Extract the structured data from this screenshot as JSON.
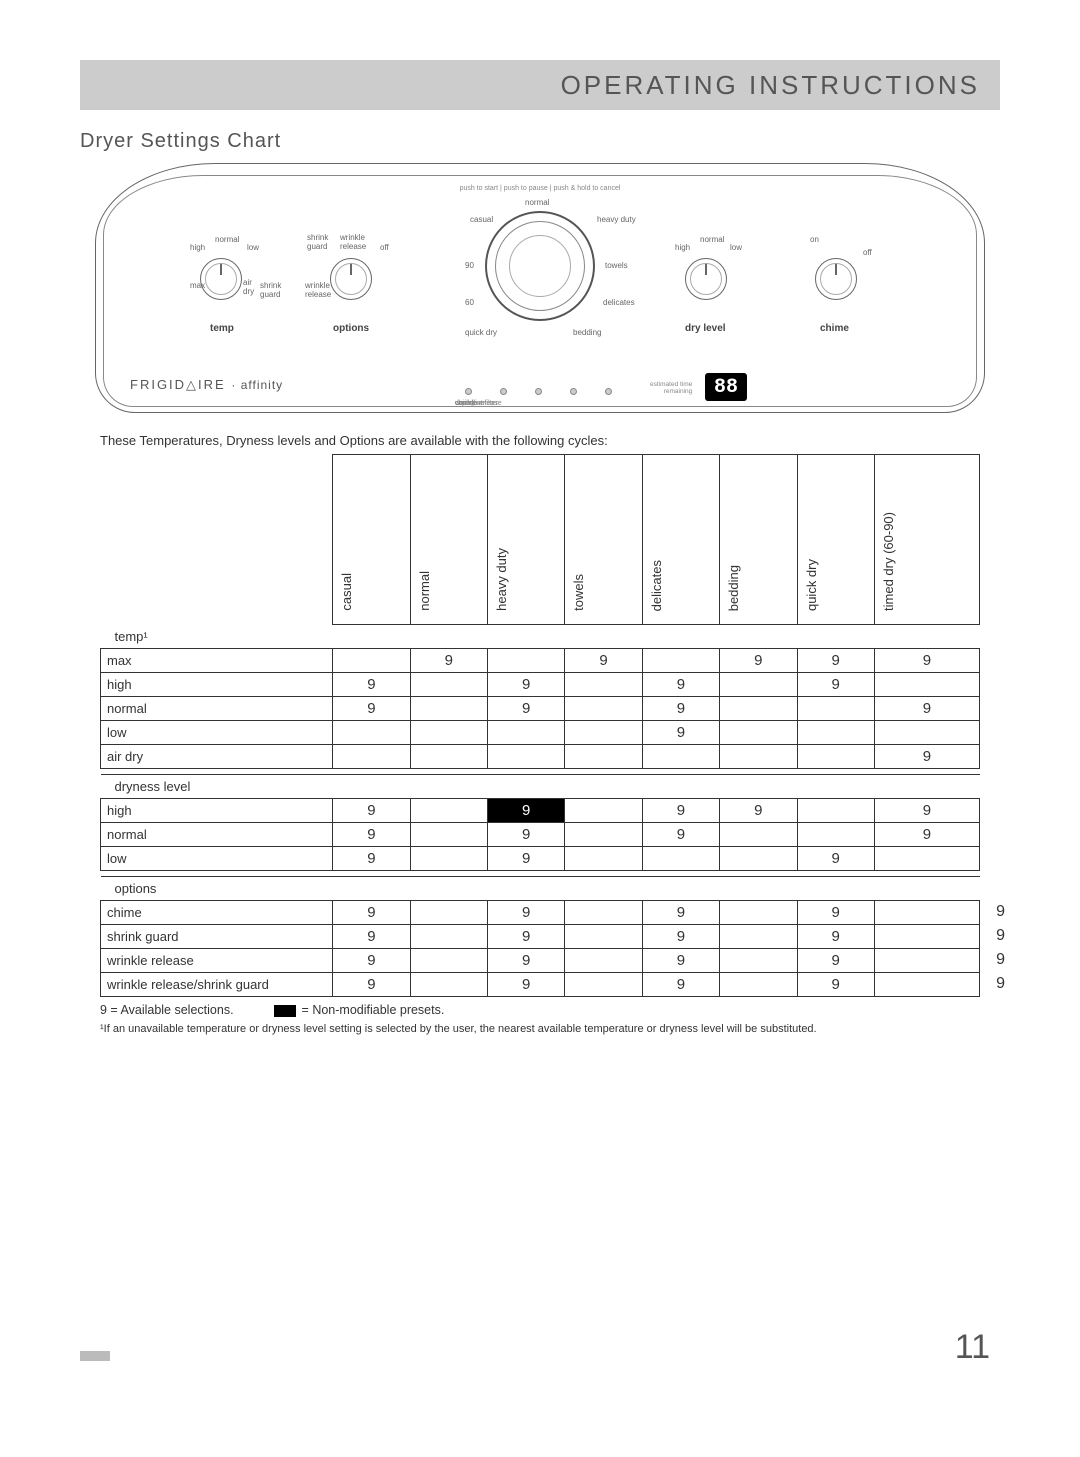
{
  "header": {
    "title": "OPERATING INSTRUCTIONS"
  },
  "section_title": "Dryer Settings Chart",
  "panel": {
    "top_hint": "push to start | push to pause | push & hold to cancel",
    "brand": "FRIGID△IRE",
    "subbrand": "· affinity",
    "knobs": {
      "temp": {
        "label": "temp",
        "ticks": [
          "high",
          "normal",
          "low",
          "max",
          "air dry",
          "shrink guard"
        ]
      },
      "options": {
        "label": "options",
        "ticks": [
          "shrink guard",
          "wrinkle release",
          "wrinkle release",
          "off"
        ]
      },
      "dry_level": {
        "label": "dry level",
        "ticks": [
          "high",
          "normal",
          "low"
        ]
      },
      "chime": {
        "label": "chime",
        "ticks": [
          "on",
          "off"
        ]
      }
    },
    "big_dial": {
      "ticks": [
        "normal",
        "casual",
        "heavy duty",
        "towels",
        "delicates",
        "bedding",
        "quick dry",
        "60",
        "90"
      ]
    },
    "status": [
      "clean lint filter",
      "drying",
      "cool down",
      "wrinkle release",
      "done"
    ],
    "display": "88",
    "est_time": "estimated time remaining"
  },
  "table": {
    "intro": "These Temperatures, Dryness levels and Options are available with the following cycles:",
    "columns": [
      "casual",
      "normal",
      "heavy duty",
      "towels",
      "delicates",
      "bedding",
      "quick dry",
      "timed dry (60-90)"
    ],
    "col_widths_pct": [
      8,
      8,
      8,
      8,
      8,
      8,
      8,
      12
    ],
    "mark_glyph": "9",
    "sections": [
      {
        "name": "temp¹",
        "rows": [
          {
            "label": "max",
            "cells": [
              "",
              "",
              "9",
              "",
              "9",
              "",
              "9",
              "9",
              "9"
            ]
          },
          {
            "label": "high",
            "cells": [
              "",
              "9",
              "",
              "9",
              "",
              "9",
              "",
              "9",
              ""
            ]
          },
          {
            "label": "normal",
            "cells": [
              "",
              "9",
              "",
              "9",
              "",
              "9",
              "",
              "",
              "9"
            ]
          },
          {
            "label": "low",
            "cells": [
              "",
              "",
              "",
              "",
              "",
              "9",
              "",
              "",
              ""
            ]
          },
          {
            "label": "air dry",
            "cells": [
              "",
              "",
              "",
              "",
              "",
              "",
              "",
              "",
              "9"
            ]
          }
        ]
      },
      {
        "name": "dryness level",
        "rows": [
          {
            "label": "high",
            "cells": [
              "",
              "9",
              "",
              "P9",
              "",
              "9",
              "9",
              "",
              "9"
            ]
          },
          {
            "label": "normal",
            "cells": [
              "",
              "9",
              "",
              "9",
              "",
              "9",
              "",
              "",
              "9"
            ]
          },
          {
            "label": "low",
            "cells": [
              "",
              "9",
              "",
              "9",
              "",
              "",
              "",
              "9",
              ""
            ]
          }
        ]
      },
      {
        "name": "options",
        "rows": [
          {
            "label": "chime",
            "cells": [
              "",
              "9",
              "",
              "9",
              "",
              "9",
              "",
              "9",
              ""
            ],
            "overflow": "9"
          },
          {
            "label": "shrink guard",
            "cells": [
              "",
              "9",
              "",
              "9",
              "",
              "9",
              "",
              "9",
              ""
            ],
            "overflow": "9"
          },
          {
            "label": "wrinkle release",
            "cells": [
              "",
              "9",
              "",
              "9",
              "",
              "9",
              "",
              "9",
              ""
            ],
            "overflow": "9"
          },
          {
            "label": "wrinkle release/shrink guard",
            "cells": [
              "",
              "9",
              "",
              "9",
              "",
              "9",
              "",
              "9",
              ""
            ],
            "overflow": "9"
          }
        ]
      }
    ],
    "legend": {
      "avail": "9 =  Available selections.",
      "preset": "= Non-modifiable presets."
    },
    "footnote": "¹If an unavailable temperature or dryness level setting is selected by the user, the nearest available temperature or dryness level will be substituted."
  },
  "page_number": "11",
  "colors": {
    "header_bg": "#cccccc",
    "text": "#333333",
    "border": "#333333"
  }
}
